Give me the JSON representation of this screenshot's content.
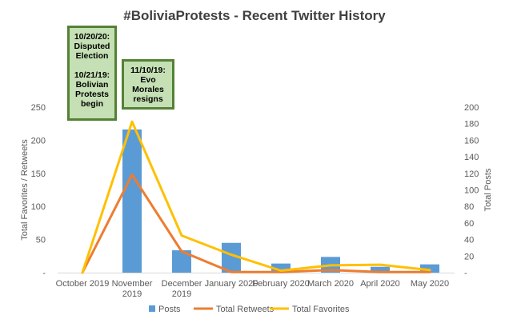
{
  "chart_data": {
    "type": "bar+line",
    "title": "#BoliviaProtests - Recent Twitter History",
    "categories": [
      "October 2019",
      "November 2019",
      "December 2019",
      "January 2020",
      "February 2020",
      "March 2020",
      "April 2020",
      "May 2020"
    ],
    "series": [
      {
        "name": "Posts",
        "kind": "bar",
        "axis": "secondary",
        "color": "#5b9bd5",
        "values": [
          0,
          173,
          27,
          36,
          11,
          19,
          7,
          10
        ]
      },
      {
        "name": "Total Retweets",
        "kind": "line",
        "axis": "primary",
        "color": "#ed7d31",
        "values": [
          0,
          148,
          32,
          1,
          1,
          4,
          1,
          1
        ]
      },
      {
        "name": "Total Favorites",
        "kind": "line",
        "axis": "primary",
        "color": "#ffc000",
        "values": [
          0,
          228,
          56,
          27,
          3,
          11,
          12,
          4
        ]
      }
    ],
    "ylabel": "Total Favorites / Retweets",
    "ylim": [
      0,
      250
    ],
    "yticks": [
      "-",
      "50",
      "100",
      "150",
      "200",
      "250"
    ],
    "y2label": "Total Posts",
    "y2lim": [
      0,
      200
    ],
    "y2ticks": [
      "-",
      "20",
      "40",
      "60",
      "80",
      "100",
      "120",
      "140",
      "160",
      "180",
      "200"
    ],
    "grid": false,
    "legend": "bottom",
    "annotations": [
      {
        "lines": [
          "10/20/20:",
          "Disputed",
          "Election",
          "",
          "10/21/19:",
          "Bolivian",
          "Protests",
          "begin"
        ]
      },
      {
        "lines": [
          "11/10/19:",
          "Evo",
          "Morales",
          "resigns"
        ]
      }
    ],
    "annotation_fill": "#c5e0b4",
    "annotation_border": "#548235"
  }
}
